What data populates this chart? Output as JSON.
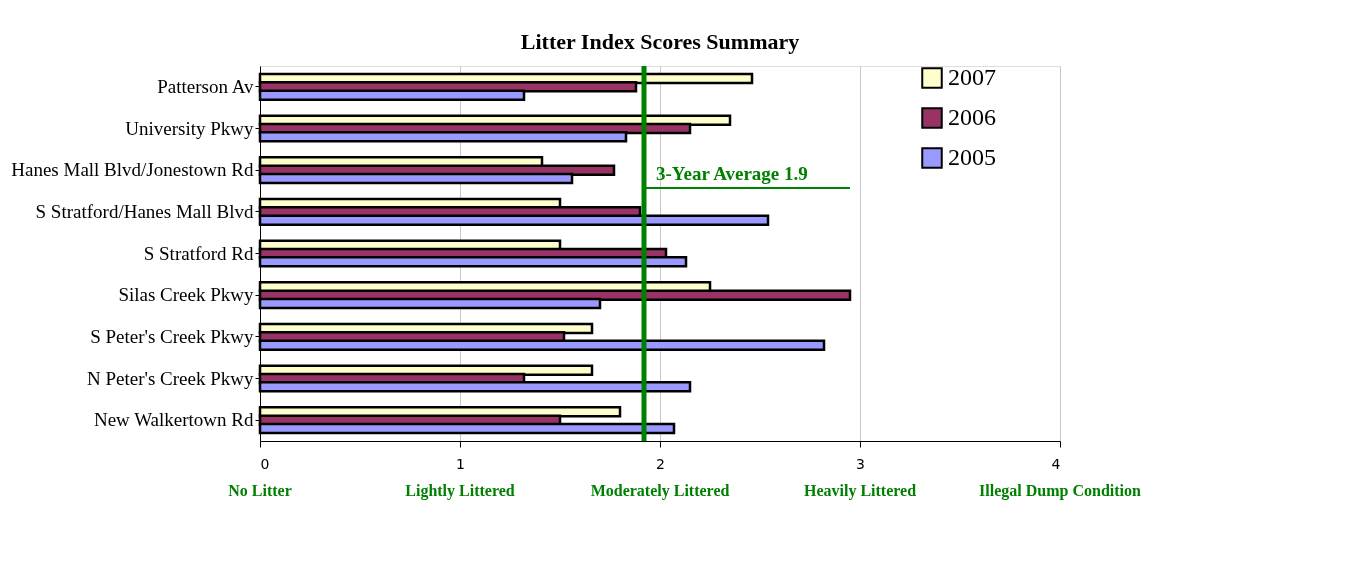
{
  "chart_data": {
    "type": "bar",
    "orientation": "horizontal",
    "title": "Litter Index Scores Summary",
    "categories": [
      "Patterson Av",
      "University Pkwy",
      "Hanes Mall Blvd/Jonestown Rd",
      "S Stratford/Hanes Mall Blvd",
      "S Stratford Rd",
      "Silas Creek Pkwy",
      "S Peter's Creek Pkwy",
      "N Peter's Creek Pkwy",
      "New Walkertown Rd"
    ],
    "series": [
      {
        "name": "2007",
        "color": "#ffffcc",
        "values": [
          2.46,
          2.35,
          1.41,
          1.5,
          1.5,
          2.25,
          1.66,
          1.66,
          1.8
        ]
      },
      {
        "name": "2006",
        "color": "#993366",
        "values": [
          1.88,
          2.15,
          1.77,
          1.9,
          2.03,
          2.95,
          1.52,
          1.32,
          1.5
        ]
      },
      {
        "name": "2005",
        "color": "#9999ff",
        "values": [
          1.32,
          1.83,
          1.56,
          2.54,
          2.13,
          1.7,
          2.82,
          2.15,
          2.07
        ]
      }
    ],
    "xlim": [
      0,
      4
    ],
    "xticks": [
      {
        "value": 0,
        "label": "0"
      },
      {
        "value": 1,
        "label": "1"
      },
      {
        "value": 2,
        "label": "2"
      },
      {
        "value": 3,
        "label": "3"
      },
      {
        "value": 4,
        "label": "4"
      }
    ],
    "grid": "x",
    "legend": "right",
    "ref_lines": [
      {
        "axis": "x",
        "value": 1.92,
        "label": "3-Year Average 1.9",
        "color": "#008000"
      }
    ],
    "annotations": [
      "No Litter",
      "Lightly Littered",
      "Moderately Littered",
      "Heavily Littered",
      "Illegal Dump Condition"
    ]
  }
}
